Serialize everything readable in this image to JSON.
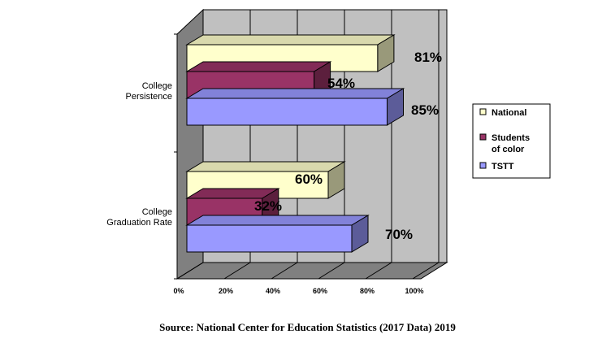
{
  "chart_data": {
    "type": "bar",
    "orientation": "horizontal",
    "three_d": true,
    "categories": [
      "College Persistence",
      "College Graduation Rate"
    ],
    "category_lines": [
      [
        "College",
        "Persistence"
      ],
      [
        "College",
        "Graduation Rate"
      ]
    ],
    "series": [
      {
        "name": "National",
        "values": [
          81,
          60
        ],
        "color": "#FFFFCC"
      },
      {
        "name": "Students of color",
        "name_lines": [
          "Students",
          "of color"
        ],
        "values": [
          54,
          32
        ],
        "color": "#993366"
      },
      {
        "name": "TSTT",
        "values": [
          85,
          70
        ],
        "color": "#9999FF"
      }
    ],
    "data_labels": [
      [
        "81%",
        "54%",
        "85%"
      ],
      [
        "60%",
        "32%",
        "70%"
      ]
    ],
    "x_ticks": [
      "0%",
      "20%",
      "40%",
      "60%",
      "80%",
      "100%"
    ],
    "xlim": [
      0,
      100
    ],
    "unit": "%",
    "grid": true,
    "legend_position": "right",
    "wall_color": "#C0C0C0",
    "floor_color": "#808080"
  },
  "source_text": "Source: National Center for Education Statistics (2017 Data) 2019"
}
